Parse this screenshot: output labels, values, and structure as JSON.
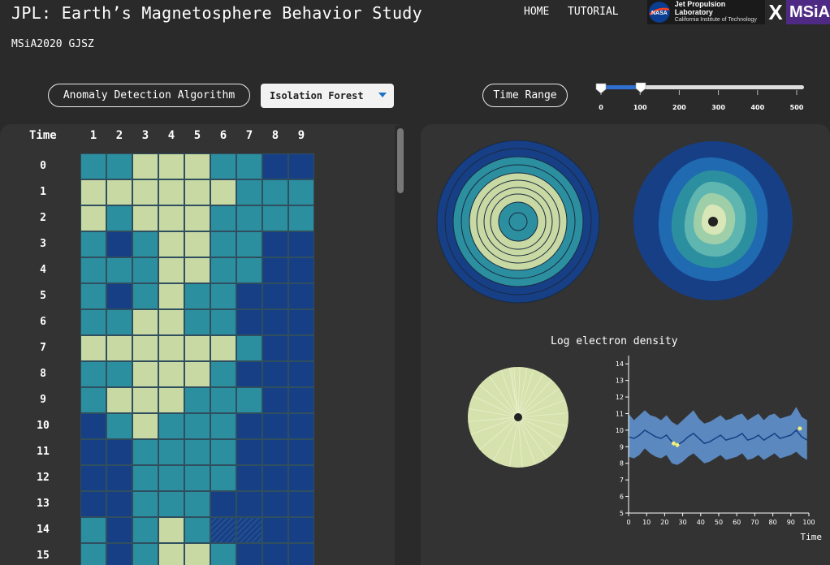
{
  "header": {
    "title": "JPL: Earth’s Magnetosphere Behavior Study",
    "subtitle": "MSiA2020 GJSZ",
    "nav": [
      "HOME",
      "TUTORIAL"
    ],
    "logos": {
      "nasa": "NASA",
      "jpl_line1": "Jet Propulsion Laboratory",
      "jpl_line2": "California Institute of Technology",
      "cross": "X",
      "msia": "MSiA"
    }
  },
  "controls": {
    "algorithm_label": "Anomaly Detection Algorithm",
    "algorithm_value": "Isolation Forest",
    "time_range_label": "Time Range",
    "slider": {
      "min": 0,
      "max": 500,
      "low": 0,
      "high": 100,
      "ticks": [
        "0",
        "100",
        "200",
        "300",
        "400",
        "500"
      ]
    }
  },
  "colors": {
    "lightgreen": "#c8d9a3",
    "teal": "#2b8fa0",
    "navy": "#173f86",
    "panel": "#333333",
    "slider_fill": "#2f6fd0"
  },
  "heatmap": {
    "time_header": "Time",
    "columns": [
      "1",
      "2",
      "3",
      "4",
      "5",
      "6",
      "7",
      "8",
      "9"
    ],
    "rows": [
      {
        "time": "0",
        "cells": [
          "T",
          "T",
          "L",
          "L",
          "L",
          "T",
          "T",
          "N",
          "N"
        ]
      },
      {
        "time": "1",
        "cells": [
          "L",
          "L",
          "L",
          "L",
          "L",
          "L",
          "T",
          "T",
          "T"
        ]
      },
      {
        "time": "2",
        "cells": [
          "L",
          "T",
          "L",
          "L",
          "L",
          "T",
          "T",
          "T",
          "T"
        ]
      },
      {
        "time": "3",
        "cells": [
          "T",
          "N",
          "T",
          "L",
          "L",
          "T",
          "T",
          "N",
          "N"
        ]
      },
      {
        "time": "4",
        "cells": [
          "T",
          "T",
          "T",
          "L",
          "L",
          "T",
          "T",
          "N",
          "N"
        ]
      },
      {
        "time": "5",
        "cells": [
          "T",
          "N",
          "T",
          "L",
          "T",
          "T",
          "N",
          "N",
          "N"
        ]
      },
      {
        "time": "6",
        "cells": [
          "T",
          "T",
          "L",
          "L",
          "T",
          "T",
          "N",
          "N",
          "N"
        ]
      },
      {
        "time": "7",
        "cells": [
          "L",
          "L",
          "L",
          "L",
          "L",
          "L",
          "T",
          "N",
          "N"
        ]
      },
      {
        "time": "8",
        "cells": [
          "T",
          "T",
          "L",
          "L",
          "L",
          "T",
          "N",
          "N",
          "N"
        ]
      },
      {
        "time": "9",
        "cells": [
          "T",
          "L",
          "L",
          "L",
          "T",
          "T",
          "T",
          "N",
          "N"
        ]
      },
      {
        "time": "10",
        "cells": [
          "N",
          "T",
          "L",
          "T",
          "T",
          "T",
          "N",
          "N",
          "N"
        ]
      },
      {
        "time": "11",
        "cells": [
          "N",
          "N",
          "T",
          "T",
          "T",
          "T",
          "N",
          "N",
          "N"
        ]
      },
      {
        "time": "12",
        "cells": [
          "N",
          "N",
          "T",
          "T",
          "T",
          "T",
          "N",
          "N",
          "N"
        ]
      },
      {
        "time": "13",
        "cells": [
          "N",
          "N",
          "T",
          "T",
          "T",
          "N",
          "N",
          "N",
          "N"
        ]
      },
      {
        "time": "14",
        "cells": [
          "T",
          "N",
          "T",
          "L",
          "T",
          "H",
          "H",
          "N",
          "N"
        ]
      },
      {
        "time": "15",
        "cells": [
          "T",
          "N",
          "T",
          "L",
          "L",
          "T",
          "N",
          "N",
          "N"
        ]
      }
    ]
  },
  "density_chart": {
    "title": "Log electron density",
    "xlabel": "Time"
  },
  "chart_data": {
    "type": "line",
    "title": "Log electron density",
    "xlabel": "Time",
    "ylabel": "",
    "xlim": [
      0,
      100
    ],
    "ylim": [
      5,
      14.5
    ],
    "xticks": [
      0,
      10,
      20,
      30,
      40,
      50,
      60,
      70,
      80,
      90,
      100
    ],
    "yticks": [
      5,
      6,
      7,
      8,
      9,
      10,
      11,
      12,
      13,
      14
    ],
    "x": [
      0,
      3,
      6,
      9,
      12,
      15,
      18,
      21,
      24,
      27,
      30,
      33,
      36,
      39,
      42,
      45,
      48,
      51,
      54,
      57,
      60,
      63,
      66,
      69,
      72,
      75,
      78,
      81,
      84,
      87,
      90,
      93,
      96,
      99
    ],
    "mean": [
      9.6,
      9.5,
      9.7,
      10.0,
      9.8,
      9.6,
      9.5,
      9.7,
      9.3,
      9.1,
      9.3,
      9.6,
      9.8,
      9.5,
      9.2,
      9.3,
      9.5,
      9.7,
      9.4,
      9.5,
      9.6,
      9.8,
      9.4,
      9.5,
      9.7,
      9.4,
      9.6,
      9.8,
      9.5,
      9.6,
      9.7,
      10.0,
      9.6,
      9.4
    ],
    "upper": [
      11.0,
      10.6,
      10.9,
      11.2,
      10.9,
      10.8,
      10.6,
      10.9,
      10.5,
      10.3,
      10.6,
      10.9,
      11.2,
      10.7,
      10.4,
      10.5,
      10.7,
      10.9,
      10.6,
      10.7,
      10.9,
      11.0,
      10.6,
      10.8,
      11.0,
      10.6,
      10.9,
      11.0,
      10.7,
      10.8,
      10.9,
      11.4,
      10.8,
      10.6
    ],
    "lower": [
      8.4,
      8.3,
      8.5,
      8.9,
      8.6,
      8.4,
      8.3,
      8.5,
      8.0,
      7.9,
      8.1,
      8.4,
      8.6,
      8.3,
      8.0,
      8.1,
      8.3,
      8.5,
      8.2,
      8.3,
      8.4,
      8.6,
      8.2,
      8.3,
      8.5,
      8.2,
      8.4,
      8.6,
      8.3,
      8.4,
      8.5,
      8.7,
      8.4,
      8.2
    ],
    "anomalies": [
      {
        "x": 25,
        "y": 9.2
      },
      {
        "x": 27,
        "y": 9.1
      },
      {
        "x": 95,
        "y": 10.1
      }
    ]
  }
}
